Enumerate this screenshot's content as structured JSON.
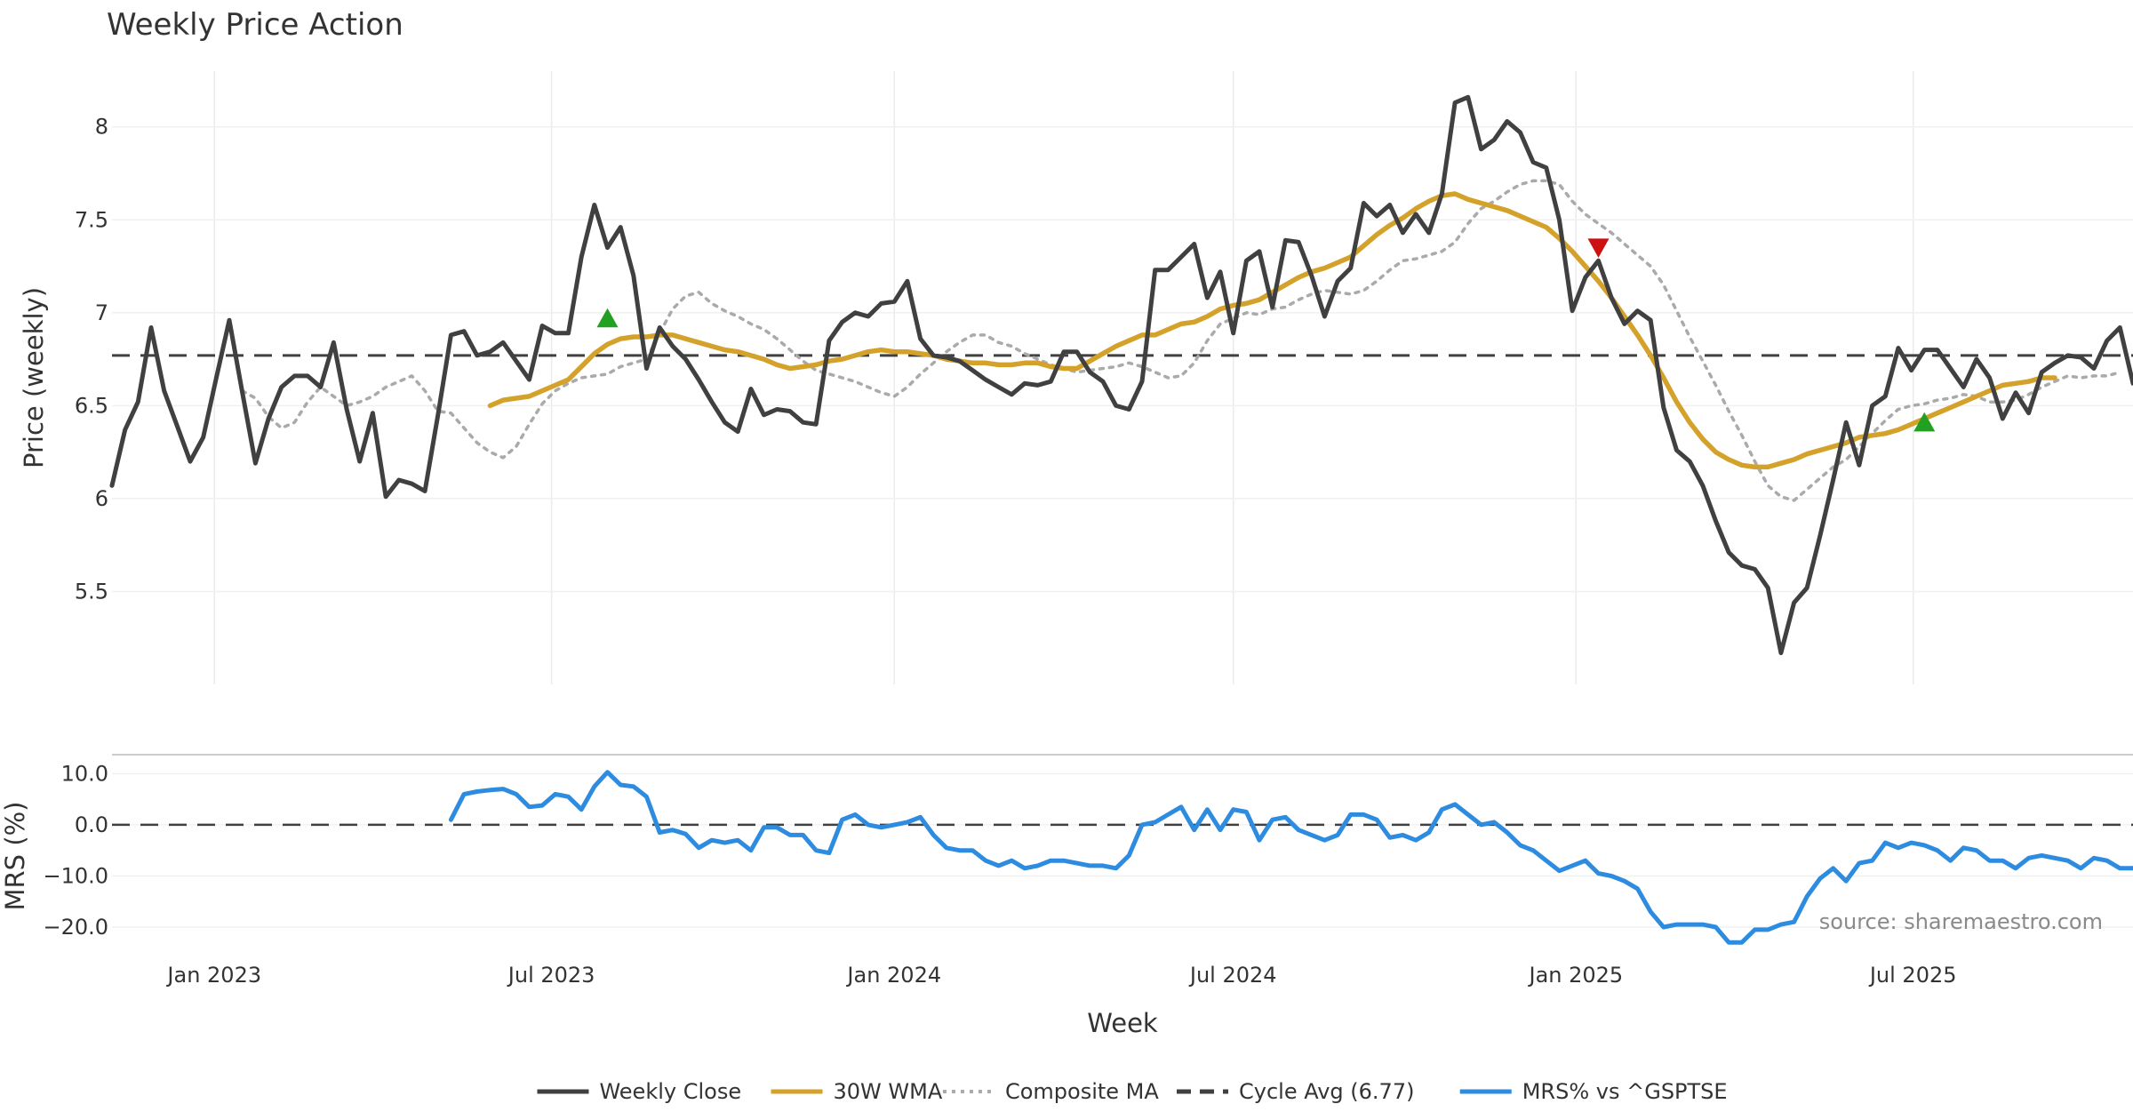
{
  "chart_data": {
    "type": "line",
    "title": "Weekly Price Action",
    "source_note": "source: sharemaestro.com",
    "xlabel": "Week",
    "x_ticks": [
      "Jan 2023",
      "Jul 2023",
      "Jan 2024",
      "Jul 2024",
      "Jan 2025",
      "Jul 2025"
    ],
    "x_range": [
      "2022-11-07",
      "2025-10-27"
    ],
    "grid": true,
    "legend_position": "bottom-center",
    "price_panel": {
      "ylabel": "Price (weekly)",
      "y_ticks": [
        "5.5",
        "6",
        "6.5",
        "7",
        "7.5",
        "8"
      ],
      "ylim": [
        5.0,
        8.3
      ],
      "series": [
        {
          "name": "Weekly Close",
          "color": "#404040",
          "style": "solid",
          "start_date": "2022-11-07",
          "values": [
            6.07,
            6.37,
            6.52,
            6.92,
            6.58,
            6.39,
            6.2,
            6.33,
            6.65,
            6.96,
            6.57,
            6.19,
            6.43,
            6.6,
            6.66,
            6.66,
            6.6,
            6.84,
            6.48,
            6.2,
            6.46,
            6.01,
            6.1,
            6.08,
            6.04,
            6.45,
            6.88,
            6.9,
            6.77,
            6.79,
            6.84,
            6.74,
            6.64,
            6.93,
            6.89,
            6.89,
            7.3,
            7.58,
            7.35,
            7.46,
            7.2,
            6.7,
            6.92,
            6.82,
            6.75,
            6.64,
            6.52,
            6.41,
            6.36,
            6.59,
            6.45,
            6.48,
            6.47,
            6.41,
            6.4,
            6.85,
            6.95,
            7.0,
            6.98,
            7.05,
            7.06,
            7.17,
            6.86,
            6.77,
            6.76,
            6.74,
            6.69,
            6.64,
            6.6,
            6.56,
            6.62,
            6.61,
            6.63,
            6.79,
            6.79,
            6.68,
            6.63,
            6.5,
            6.48,
            6.63,
            7.23,
            7.23,
            7.3,
            7.37,
            7.08,
            7.22,
            6.89,
            7.28,
            7.33,
            7.03,
            7.39,
            7.38,
            7.2,
            6.98,
            7.17,
            7.24,
            7.59,
            7.52,
            7.58,
            7.43,
            7.53,
            7.43,
            7.64,
            8.13,
            8.16,
            7.88,
            7.93,
            8.03,
            7.97,
            7.81,
            7.78,
            7.5,
            7.01,
            7.19,
            7.28,
            7.08,
            6.94,
            7.01,
            6.96,
            6.49,
            6.26,
            6.2,
            6.07,
            5.88,
            5.71,
            5.64,
            5.62,
            5.52,
            5.17,
            5.44,
            5.52,
            5.8,
            6.1,
            6.41,
            6.18,
            6.5,
            6.55,
            6.81,
            6.69,
            6.8,
            6.8,
            6.7,
            6.6,
            6.75,
            6.65,
            6.43,
            6.57,
            6.46,
            6.68,
            6.73,
            6.77,
            6.76,
            6.7,
            6.85,
            6.92,
            6.62,
            6.62,
            6.76,
            6.55
          ]
        },
        {
          "name": "30W WMA",
          "color": "#d4a22a",
          "style": "solid",
          "start_date": "2023-05-29",
          "values": [
            6.5,
            6.53,
            6.54,
            6.55,
            6.58,
            6.61,
            6.64,
            6.71,
            6.78,
            6.83,
            6.86,
            6.87,
            6.87,
            6.88,
            6.88,
            6.86,
            6.84,
            6.82,
            6.8,
            6.79,
            6.77,
            6.75,
            6.72,
            6.7,
            6.71,
            6.72,
            6.74,
            6.75,
            6.77,
            6.79,
            6.8,
            6.79,
            6.79,
            6.78,
            6.77,
            6.75,
            6.74,
            6.73,
            6.73,
            6.72,
            6.72,
            6.73,
            6.73,
            6.71,
            6.7,
            6.7,
            6.74,
            6.78,
            6.82,
            6.85,
            6.88,
            6.88,
            6.91,
            6.94,
            6.95,
            6.98,
            7.02,
            7.04,
            7.05,
            7.07,
            7.11,
            7.15,
            7.19,
            7.22,
            7.24,
            7.27,
            7.3,
            7.36,
            7.42,
            7.47,
            7.51,
            7.56,
            7.6,
            7.63,
            7.64,
            7.61,
            7.59,
            7.57,
            7.55,
            7.52,
            7.49,
            7.46,
            7.4,
            7.33,
            7.25,
            7.17,
            7.08,
            6.98,
            6.88,
            6.77,
            6.65,
            6.52,
            6.41,
            6.32,
            6.25,
            6.21,
            6.18,
            6.17,
            6.17,
            6.19,
            6.21,
            6.24,
            6.26,
            6.28,
            6.3,
            6.33,
            6.34,
            6.35,
            6.37,
            6.4,
            6.43,
            6.46,
            6.49,
            6.52,
            6.55,
            6.58,
            6.61,
            6.62,
            6.63,
            6.65,
            6.65
          ]
        },
        {
          "name": "Composite MA",
          "color": "#aaaaaa",
          "style": "dotted",
          "start_date": "2023-01-16",
          "values": [
            6.58,
            6.54,
            6.44,
            6.38,
            6.41,
            6.52,
            6.6,
            6.55,
            6.5,
            6.52,
            6.55,
            6.6,
            6.63,
            6.66,
            6.58,
            6.47,
            6.46,
            6.38,
            6.3,
            6.25,
            6.22,
            6.28,
            6.4,
            6.51,
            6.58,
            6.62,
            6.65,
            6.66,
            6.67,
            6.71,
            6.73,
            6.75,
            6.89,
            7.02,
            7.09,
            7.11,
            7.05,
            7.01,
            6.98,
            6.94,
            6.91,
            6.86,
            6.8,
            6.74,
            6.69,
            6.67,
            6.65,
            6.63,
            6.6,
            6.57,
            6.55,
            6.6,
            6.67,
            6.73,
            6.79,
            6.84,
            6.88,
            6.88,
            6.84,
            6.82,
            6.78,
            6.75,
            6.72,
            6.7,
            6.68,
            6.69,
            6.7,
            6.71,
            6.73,
            6.71,
            6.68,
            6.65,
            6.66,
            6.73,
            6.85,
            6.94,
            6.97,
            7.0,
            6.99,
            7.02,
            7.03,
            7.07,
            7.1,
            7.12,
            7.11,
            7.1,
            7.12,
            7.17,
            7.23,
            7.28,
            7.29,
            7.31,
            7.33,
            7.38,
            7.48,
            7.56,
            7.6,
            7.65,
            7.69,
            7.71,
            7.71,
            7.69,
            7.6,
            7.53,
            7.48,
            7.43,
            7.37,
            7.31,
            7.25,
            7.15,
            7.01,
            6.87,
            6.74,
            6.61,
            6.47,
            6.34,
            6.2,
            6.07,
            6.01,
            5.99,
            6.05,
            6.11,
            6.17,
            6.21,
            6.28,
            6.35,
            6.42,
            6.48,
            6.5,
            6.51,
            6.53,
            6.54,
            6.56,
            6.55,
            6.52,
            6.52,
            6.53,
            6.56,
            6.6,
            6.63,
            6.66,
            6.65,
            6.66,
            6.66,
            6.68
          ]
        },
        {
          "name": "Cycle Avg (6.77)",
          "color": "#404040",
          "style": "dashed",
          "value": 6.77
        }
      ],
      "markers": [
        {
          "type": "buy",
          "date": "2023-07-31",
          "value": 6.97,
          "color": "#22a022"
        },
        {
          "type": "sell",
          "date": "2025-01-13",
          "value": 7.35,
          "color": "#cc1111"
        },
        {
          "type": "buy",
          "date": "2025-07-07",
          "value": 6.41,
          "color": "#22a022"
        }
      ]
    },
    "mrs_panel": {
      "ylabel": "MRS (%)",
      "y_ticks": [
        "−20.0",
        "−10.0",
        "0.0",
        "10.0"
      ],
      "ylim": [
        -24,
        12.5
      ],
      "zero_line": 0,
      "series": [
        {
          "name": "MRS% vs ^GSPTSE",
          "color": "#2e8ce0",
          "style": "solid",
          "start_date": "2023-05-08",
          "values": [
            1,
            6,
            6.5,
            6.8,
            7,
            6,
            3.5,
            3.8,
            6,
            5.5,
            3,
            7.5,
            10.3,
            7.8,
            7.5,
            5.5,
            -1.5,
            -1,
            -1.8,
            -4.5,
            -3,
            -3.5,
            -3,
            -5,
            -0.5,
            -0.5,
            -2,
            -2,
            -5,
            -5.5,
            1,
            2,
            0,
            -0.5,
            0,
            0.5,
            1.5,
            -2,
            -4.5,
            -5,
            -5,
            -7,
            -8,
            -7,
            -8.5,
            -8,
            -7,
            -7,
            -7.5,
            -8,
            -8,
            -8.5,
            -6,
            0,
            0.5,
            2,
            3.5,
            -1,
            3,
            -1,
            3,
            2.5,
            -3,
            1,
            1.5,
            -1,
            -2,
            -3,
            -2,
            2,
            2,
            1,
            -2.5,
            -2,
            -3,
            -1.5,
            3,
            4,
            2,
            0,
            0.5,
            -1.5,
            -4,
            -5,
            -7,
            -9,
            -8,
            -7,
            -9.5,
            -10,
            -11,
            -12.5,
            -17,
            -20,
            -19.5,
            -19.5,
            -19.5,
            -20,
            -23,
            -23,
            -20.5,
            -20.5,
            -19.5,
            -19,
            -14,
            -10.5,
            -8.5,
            -11,
            -7.5,
            -7,
            -3.5,
            -4.5,
            -3.5,
            -4,
            -5,
            -7,
            -4.5,
            -5,
            -7,
            -7,
            -8.5,
            -6.5,
            -6,
            -6.5,
            -7,
            -8.5,
            -6.5,
            -7,
            -8.5,
            -8.5,
            -7,
            -9.5
          ]
        }
      ]
    },
    "legend": [
      {
        "label": "Weekly Close",
        "color": "#404040",
        "style": "solid"
      },
      {
        "label": "30W WMA",
        "color": "#d4a22a",
        "style": "solid"
      },
      {
        "label": "Composite MA",
        "color": "#aaaaaa",
        "style": "dotted"
      },
      {
        "label": "Cycle Avg (6.77)",
        "color": "#404040",
        "style": "dashed"
      },
      {
        "label": "MRS% vs ^GSPTSE",
        "color": "#2e8ce0",
        "style": "solid"
      }
    ]
  }
}
